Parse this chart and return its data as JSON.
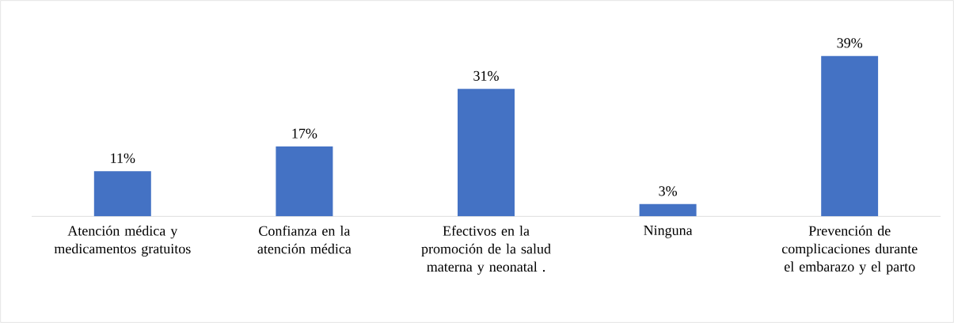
{
  "chart_data": {
    "type": "bar",
    "categories": [
      "Atención médica y medicamentos gratuitos",
      "Confianza en la atención médica",
      "Efectivos en la promoción de la salud materna y neonatal .",
      "Ninguna",
      "Prevención de complicaciones durante el embarazo y el parto"
    ],
    "values": [
      11,
      17,
      31,
      3,
      39
    ],
    "value_labels": [
      "11%",
      "17%",
      "31%",
      "3%",
      "39%"
    ],
    "color": "#4472c4"
  }
}
